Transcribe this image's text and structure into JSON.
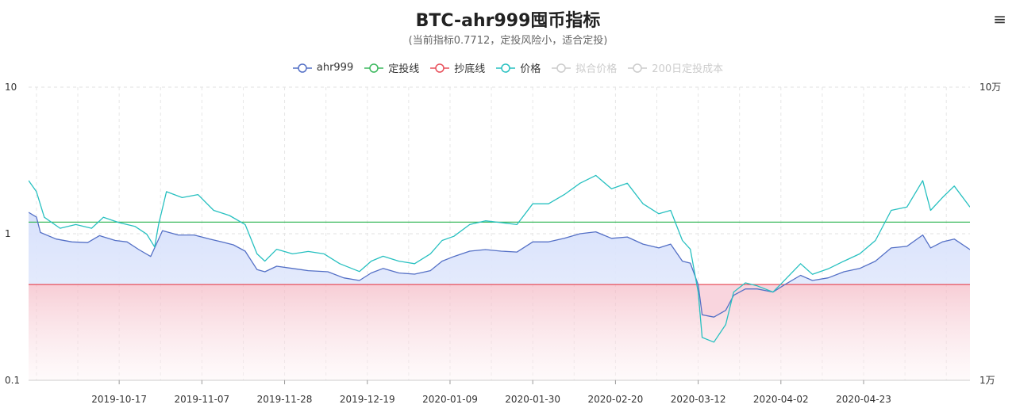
{
  "header": {
    "title": "BTC-ahr999囤币指标",
    "subtitle": "(当前指标0.7712，定投风险小，适合定投)"
  },
  "legend": [
    {
      "label": "ahr999",
      "color": "#5470c6",
      "active": true
    },
    {
      "label": "定投线",
      "color": "#3cb95e",
      "active": true
    },
    {
      "label": "抄底线",
      "color": "#e8505b",
      "active": true
    },
    {
      "label": "价格",
      "color": "#27c0c0",
      "active": true
    },
    {
      "label": "拟合价格",
      "color": "#cccccc",
      "active": false
    },
    {
      "label": "200日定投成本",
      "color": "#cccccc",
      "active": false
    }
  ],
  "chart_data": {
    "type": "line",
    "x_tick_labels": [
      "2019-10-17",
      "2019-11-07",
      "2019-11-28",
      "2019-12-19",
      "2020-01-09",
      "2020-01-30",
      "2020-02-20",
      "2020-03-12",
      "2020-04-02",
      "2020-04-23"
    ],
    "y_left": {
      "scale": "log",
      "range": [
        0.1,
        10
      ],
      "tick_labels": [
        "0.1",
        "1",
        "10"
      ]
    },
    "y_right": {
      "scale": "log",
      "range": [
        10000,
        100000
      ],
      "tick_labels": [
        "1万",
        "10万"
      ]
    },
    "x_range": [
      "2019-09-24",
      "2020-05-20"
    ],
    "grid": true,
    "legend_position": "top",
    "series": [
      {
        "name": "ahr999",
        "axis": "left",
        "color": "#5470c6",
        "area": true,
        "points": [
          [
            "2019-09-24",
            1.4
          ],
          [
            "2019-09-26",
            1.3
          ],
          [
            "2019-09-27",
            1.02
          ],
          [
            "2019-10-01",
            0.92
          ],
          [
            "2019-10-05",
            0.88
          ],
          [
            "2019-10-09",
            0.87
          ],
          [
            "2019-10-12",
            0.97
          ],
          [
            "2019-10-16",
            0.9
          ],
          [
            "2019-10-19",
            0.88
          ],
          [
            "2019-10-22",
            0.78
          ],
          [
            "2019-10-25",
            0.7
          ],
          [
            "2019-10-26",
            0.8
          ],
          [
            "2019-10-28",
            1.05
          ],
          [
            "2019-11-01",
            0.98
          ],
          [
            "2019-11-05",
            0.98
          ],
          [
            "2019-11-09",
            0.92
          ],
          [
            "2019-11-12",
            0.88
          ],
          [
            "2019-11-15",
            0.84
          ],
          [
            "2019-11-18",
            0.76
          ],
          [
            "2019-11-21",
            0.57
          ],
          [
            "2019-11-23",
            0.55
          ],
          [
            "2019-11-26",
            0.6
          ],
          [
            "2019-11-30",
            0.58
          ],
          [
            "2019-12-04",
            0.56
          ],
          [
            "2019-12-09",
            0.55
          ],
          [
            "2019-12-13",
            0.5
          ],
          [
            "2019-12-17",
            0.48
          ],
          [
            "2019-12-20",
            0.54
          ],
          [
            "2019-12-23",
            0.58
          ],
          [
            "2019-12-27",
            0.54
          ],
          [
            "2019-12-31",
            0.53
          ],
          [
            "2020-01-04",
            0.56
          ],
          [
            "2020-01-07",
            0.65
          ],
          [
            "2020-01-10",
            0.7
          ],
          [
            "2020-01-14",
            0.76
          ],
          [
            "2020-01-18",
            0.78
          ],
          [
            "2020-01-22",
            0.76
          ],
          [
            "2020-01-26",
            0.75
          ],
          [
            "2020-01-30",
            0.88
          ],
          [
            "2020-02-03",
            0.88
          ],
          [
            "2020-02-07",
            0.93
          ],
          [
            "2020-02-11",
            1.0
          ],
          [
            "2020-02-15",
            1.03
          ],
          [
            "2020-02-19",
            0.93
          ],
          [
            "2020-02-23",
            0.95
          ],
          [
            "2020-02-27",
            0.85
          ],
          [
            "2020-03-02",
            0.8
          ],
          [
            "2020-03-05",
            0.85
          ],
          [
            "2020-03-08",
            0.65
          ],
          [
            "2020-03-10",
            0.63
          ],
          [
            "2020-03-12",
            0.45
          ],
          [
            "2020-03-13",
            0.28
          ],
          [
            "2020-03-16",
            0.27
          ],
          [
            "2020-03-19",
            0.3
          ],
          [
            "2020-03-21",
            0.38
          ],
          [
            "2020-03-24",
            0.42
          ],
          [
            "2020-03-27",
            0.42
          ],
          [
            "2020-03-31",
            0.4
          ],
          [
            "2020-04-03",
            0.45
          ],
          [
            "2020-04-07",
            0.52
          ],
          [
            "2020-04-10",
            0.48
          ],
          [
            "2020-04-14",
            0.5
          ],
          [
            "2020-04-18",
            0.55
          ],
          [
            "2020-04-22",
            0.58
          ],
          [
            "2020-04-26",
            0.65
          ],
          [
            "2020-04-30",
            0.8
          ],
          [
            "2020-05-04",
            0.82
          ],
          [
            "2020-05-08",
            0.98
          ],
          [
            "2020-05-10",
            0.8
          ],
          [
            "2020-05-13",
            0.88
          ],
          [
            "2020-05-16",
            0.92
          ],
          [
            "2020-05-20",
            0.78
          ]
        ]
      },
      {
        "name": "定投线",
        "axis": "left",
        "color": "#3cb95e",
        "constant": 1.2
      },
      {
        "name": "抄底线",
        "axis": "left",
        "color": "#e8505b",
        "constant": 0.45
      },
      {
        "name": "价格",
        "axis": "right",
        "color": "#27c0c0",
        "points": [
          [
            "2019-09-24",
            48000
          ],
          [
            "2019-09-26",
            44000
          ],
          [
            "2019-09-28",
            36000
          ],
          [
            "2019-10-02",
            33000
          ],
          [
            "2019-10-06",
            34000
          ],
          [
            "2019-10-10",
            33000
          ],
          [
            "2019-10-13",
            36000
          ],
          [
            "2019-10-17",
            34500
          ],
          [
            "2019-10-21",
            33500
          ],
          [
            "2019-10-24",
            31500
          ],
          [
            "2019-10-26",
            28500
          ],
          [
            "2019-10-27",
            34000
          ],
          [
            "2019-10-29",
            44000
          ],
          [
            "2019-11-02",
            42000
          ],
          [
            "2019-11-06",
            43000
          ],
          [
            "2019-11-10",
            38000
          ],
          [
            "2019-11-14",
            36500
          ],
          [
            "2019-11-18",
            34000
          ],
          [
            "2019-11-21",
            27000
          ],
          [
            "2019-11-23",
            25500
          ],
          [
            "2019-11-26",
            28000
          ],
          [
            "2019-11-30",
            27000
          ],
          [
            "2019-12-04",
            27500
          ],
          [
            "2019-12-08",
            27000
          ],
          [
            "2019-12-12",
            25000
          ],
          [
            "2019-12-17",
            23500
          ],
          [
            "2019-12-20",
            25500
          ],
          [
            "2019-12-23",
            26500
          ],
          [
            "2019-12-27",
            25500
          ],
          [
            "2019-12-31",
            25000
          ],
          [
            "2020-01-04",
            27000
          ],
          [
            "2020-01-07",
            30000
          ],
          [
            "2020-01-10",
            31000
          ],
          [
            "2020-01-14",
            34000
          ],
          [
            "2020-01-18",
            35000
          ],
          [
            "2020-01-22",
            34500
          ],
          [
            "2020-01-26",
            34000
          ],
          [
            "2020-01-30",
            40000
          ],
          [
            "2020-02-03",
            40000
          ],
          [
            "2020-02-07",
            43000
          ],
          [
            "2020-02-11",
            47000
          ],
          [
            "2020-02-15",
            50000
          ],
          [
            "2020-02-19",
            45000
          ],
          [
            "2020-02-23",
            47000
          ],
          [
            "2020-02-27",
            40000
          ],
          [
            "2020-03-02",
            37000
          ],
          [
            "2020-03-05",
            38000
          ],
          [
            "2020-03-08",
            30000
          ],
          [
            "2020-03-10",
            28000
          ],
          [
            "2020-03-12",
            20000
          ],
          [
            "2020-03-13",
            14000
          ],
          [
            "2020-03-16",
            13500
          ],
          [
            "2020-03-19",
            15500
          ],
          [
            "2020-03-21",
            20000
          ],
          [
            "2020-03-24",
            21500
          ],
          [
            "2020-03-27",
            21000
          ],
          [
            "2020-03-31",
            20000
          ],
          [
            "2020-04-03",
            22000
          ],
          [
            "2020-04-07",
            25000
          ],
          [
            "2020-04-10",
            23000
          ],
          [
            "2020-04-14",
            24000
          ],
          [
            "2020-04-18",
            25500
          ],
          [
            "2020-04-22",
            27000
          ],
          [
            "2020-04-26",
            30000
          ],
          [
            "2020-04-30",
            38000
          ],
          [
            "2020-05-04",
            39000
          ],
          [
            "2020-05-08",
            48000
          ],
          [
            "2020-05-10",
            38000
          ],
          [
            "2020-05-13",
            42000
          ],
          [
            "2020-05-16",
            46000
          ],
          [
            "2020-05-20",
            39000
          ]
        ]
      }
    ]
  }
}
